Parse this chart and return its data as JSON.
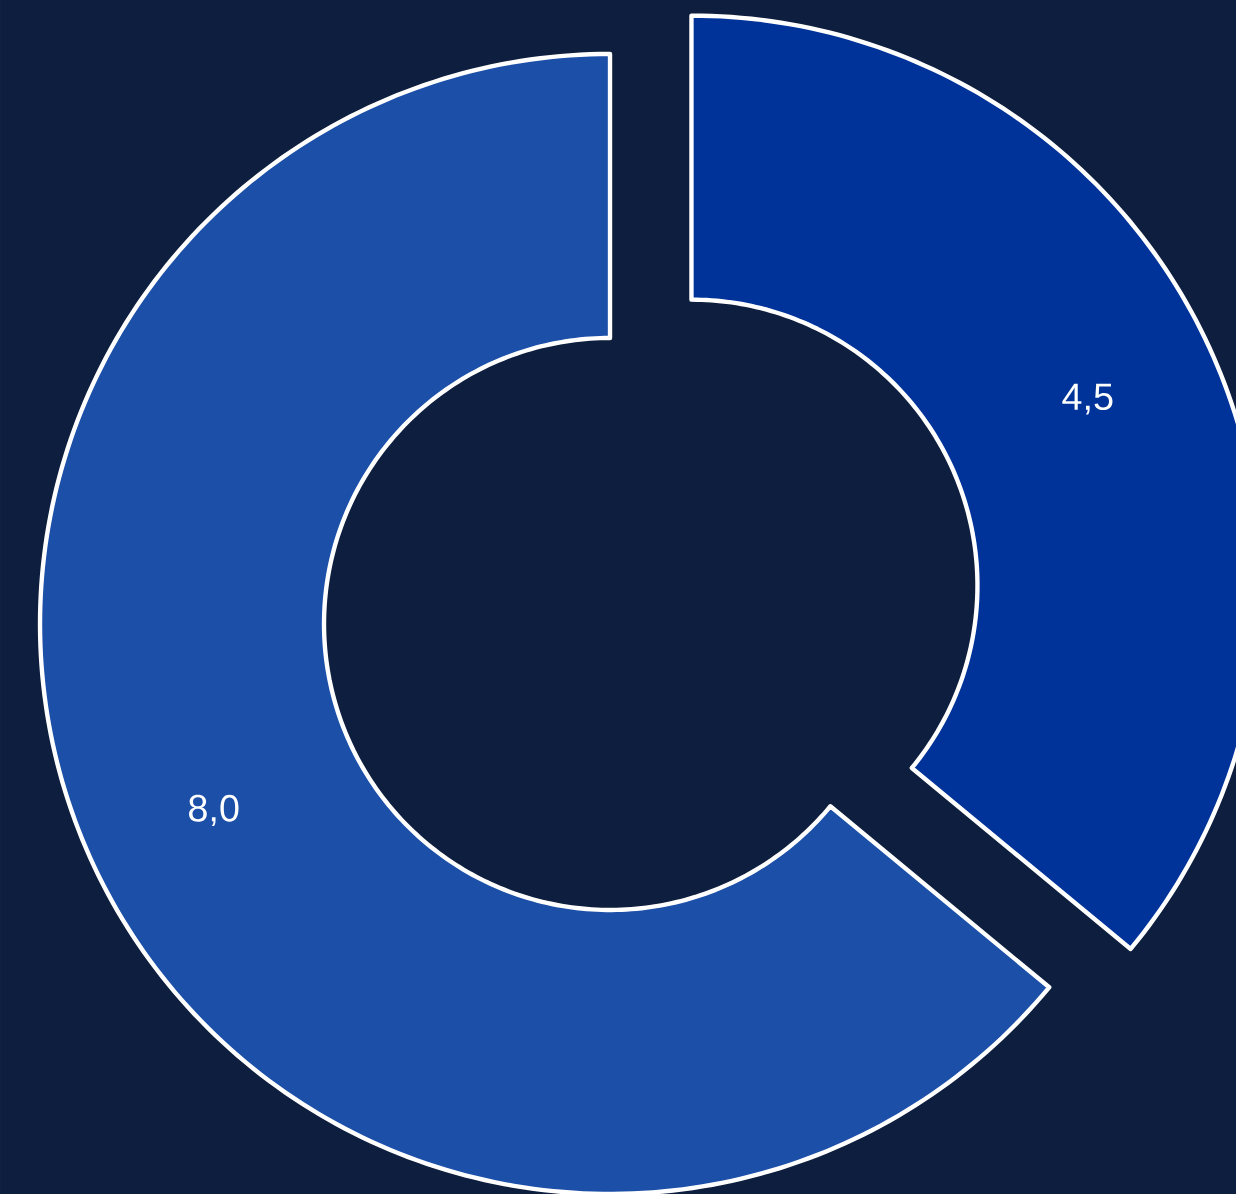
{
  "chart_data": {
    "type": "donut",
    "categories": [
      null,
      null
    ],
    "values": [
      4.5,
      8.0
    ],
    "value_labels": [
      "4,5",
      "8,0"
    ],
    "colors": [
      "#003399",
      "#1b4fa8"
    ]
  }
}
